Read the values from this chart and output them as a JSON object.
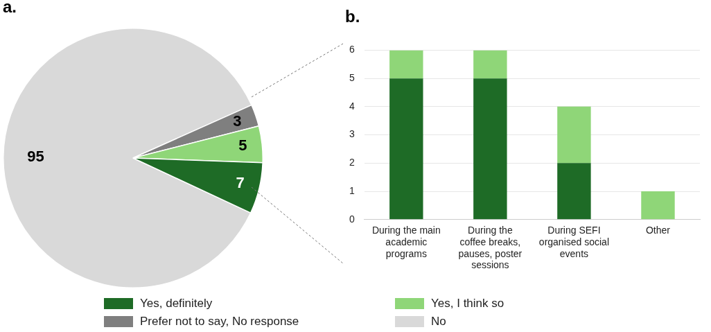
{
  "chart_data": [
    {
      "type": "pie",
      "title": "a.",
      "categories": [
        "Yes, definitely",
        "Yes, I think so",
        "Prefer not to say, No response",
        "No"
      ],
      "values": [
        7,
        5,
        3,
        95
      ],
      "colors": [
        "#1e6b26",
        "#8fd678",
        "#7f7f7f",
        "#d9d9d9"
      ],
      "data_labels": true,
      "legend": "bottom"
    },
    {
      "type": "bar",
      "title": "b.",
      "categories": [
        "During the main academic programs",
        "During the coffee breaks, pauses, poster sessions",
        "During SEFI organised social events",
        "Other"
      ],
      "stacked": true,
      "series": [
        {
          "color": "#1e6b26",
          "values": [
            5,
            5,
            2,
            0
          ]
        },
        {
          "color": "#8fd678",
          "values": [
            1,
            1,
            2,
            1
          ]
        }
      ],
      "ylim": [
        0,
        6
      ],
      "yticks": [
        0,
        1,
        2,
        3,
        4,
        5,
        6
      ],
      "grid": "y"
    }
  ]
}
